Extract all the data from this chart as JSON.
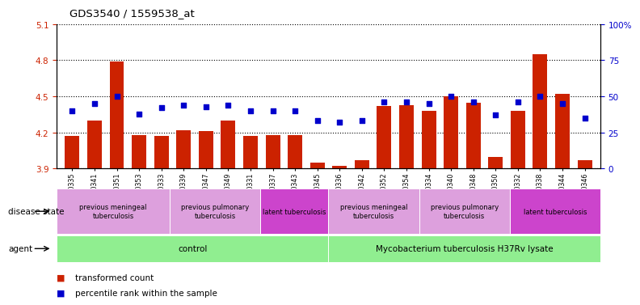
{
  "title": "GDS3540 / 1559538_at",
  "samples": [
    "GSM280335",
    "GSM280341",
    "GSM280351",
    "GSM280353",
    "GSM280333",
    "GSM280339",
    "GSM280347",
    "GSM280349",
    "GSM280331",
    "GSM280337",
    "GSM280343",
    "GSM280345",
    "GSM280336",
    "GSM280342",
    "GSM280352",
    "GSM280354",
    "GSM280334",
    "GSM280340",
    "GSM280348",
    "GSM280350",
    "GSM280332",
    "GSM280338",
    "GSM280344",
    "GSM280346"
  ],
  "transformed_count": [
    4.17,
    4.3,
    4.79,
    4.18,
    4.17,
    4.22,
    4.21,
    4.3,
    4.17,
    4.18,
    4.18,
    3.95,
    3.92,
    3.97,
    4.42,
    4.43,
    4.38,
    4.5,
    4.45,
    4.0,
    4.38,
    4.85,
    4.52,
    3.97
  ],
  "percentile": [
    40,
    45,
    50,
    38,
    42,
    44,
    43,
    44,
    40,
    40,
    40,
    33,
    32,
    33,
    46,
    46,
    45,
    50,
    46,
    37,
    46,
    50,
    45,
    35
  ],
  "ylim_left": [
    3.9,
    5.1
  ],
  "ylim_right": [
    0,
    100
  ],
  "yticks_left": [
    3.9,
    4.2,
    4.5,
    4.8,
    5.1
  ],
  "yticks_right": [
    0,
    25,
    50,
    75,
    100
  ],
  "bar_color": "#cc2200",
  "dot_color": "#0000cc",
  "background_color": "#ffffff",
  "agent_groups": [
    {
      "label": "control",
      "start": 0,
      "end": 11,
      "color": "#90ee90"
    },
    {
      "label": "Mycobacterium tuberculosis H37Rv lysate",
      "start": 12,
      "end": 23,
      "color": "#90ee90"
    }
  ],
  "disease_groups": [
    {
      "label": "previous meningeal\ntuberculosis",
      "start": 0,
      "end": 4,
      "color": "#dda0dd"
    },
    {
      "label": "previous pulmonary\ntuberculosis",
      "start": 5,
      "end": 8,
      "color": "#dda0dd"
    },
    {
      "label": "latent tuberculosis",
      "start": 9,
      "end": 11,
      "color": "#cc44cc"
    },
    {
      "label": "previous meningeal\ntuberculosis",
      "start": 12,
      "end": 15,
      "color": "#dda0dd"
    },
    {
      "label": "previous pulmonary\ntuberculosis",
      "start": 16,
      "end": 19,
      "color": "#dda0dd"
    },
    {
      "label": "latent tuberculosis",
      "start": 20,
      "end": 23,
      "color": "#cc44cc"
    }
  ]
}
